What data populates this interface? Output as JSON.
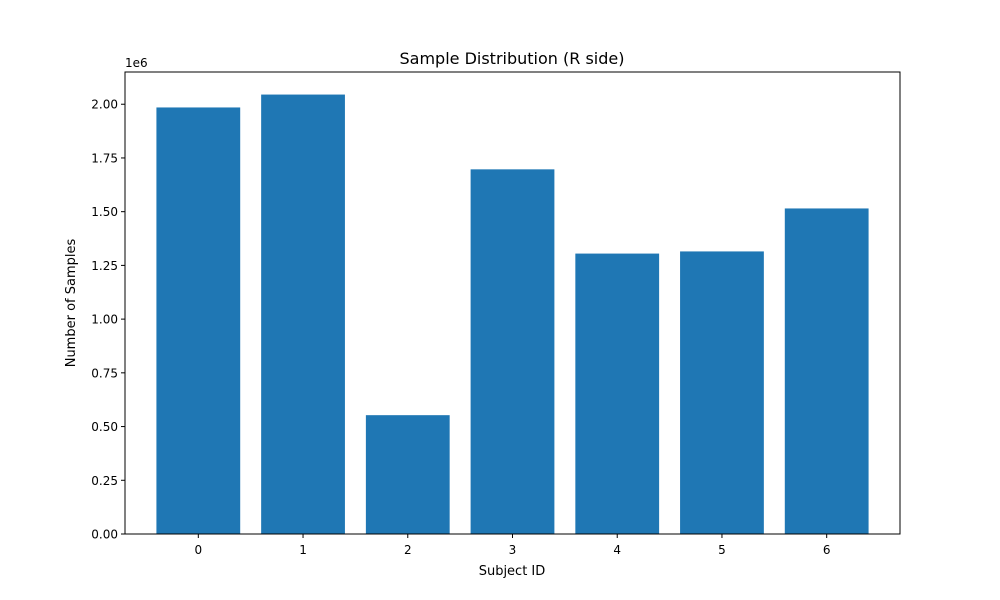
{
  "chart_data": {
    "type": "bar",
    "title": "Sample Distribution (R side)",
    "xlabel": "Subject ID",
    "ylabel": "Number of Samples",
    "y_offset_label": "1e6",
    "categories": [
      "0",
      "1",
      "2",
      "3",
      "4",
      "5",
      "6"
    ],
    "values": [
      1985000,
      2045000,
      553000,
      1697000,
      1305000,
      1315000,
      1515000
    ],
    "ylim": [
      0,
      2150000
    ],
    "y_ticks": [
      0,
      250000,
      500000,
      750000,
      1000000,
      1250000,
      1500000,
      1750000,
      2000000
    ],
    "y_tick_labels": [
      "0.00",
      "0.25",
      "0.50",
      "0.75",
      "1.00",
      "1.25",
      "1.50",
      "1.75",
      "2.00"
    ],
    "bar_color": "#1f77b4",
    "grid": false,
    "legend": "none"
  }
}
